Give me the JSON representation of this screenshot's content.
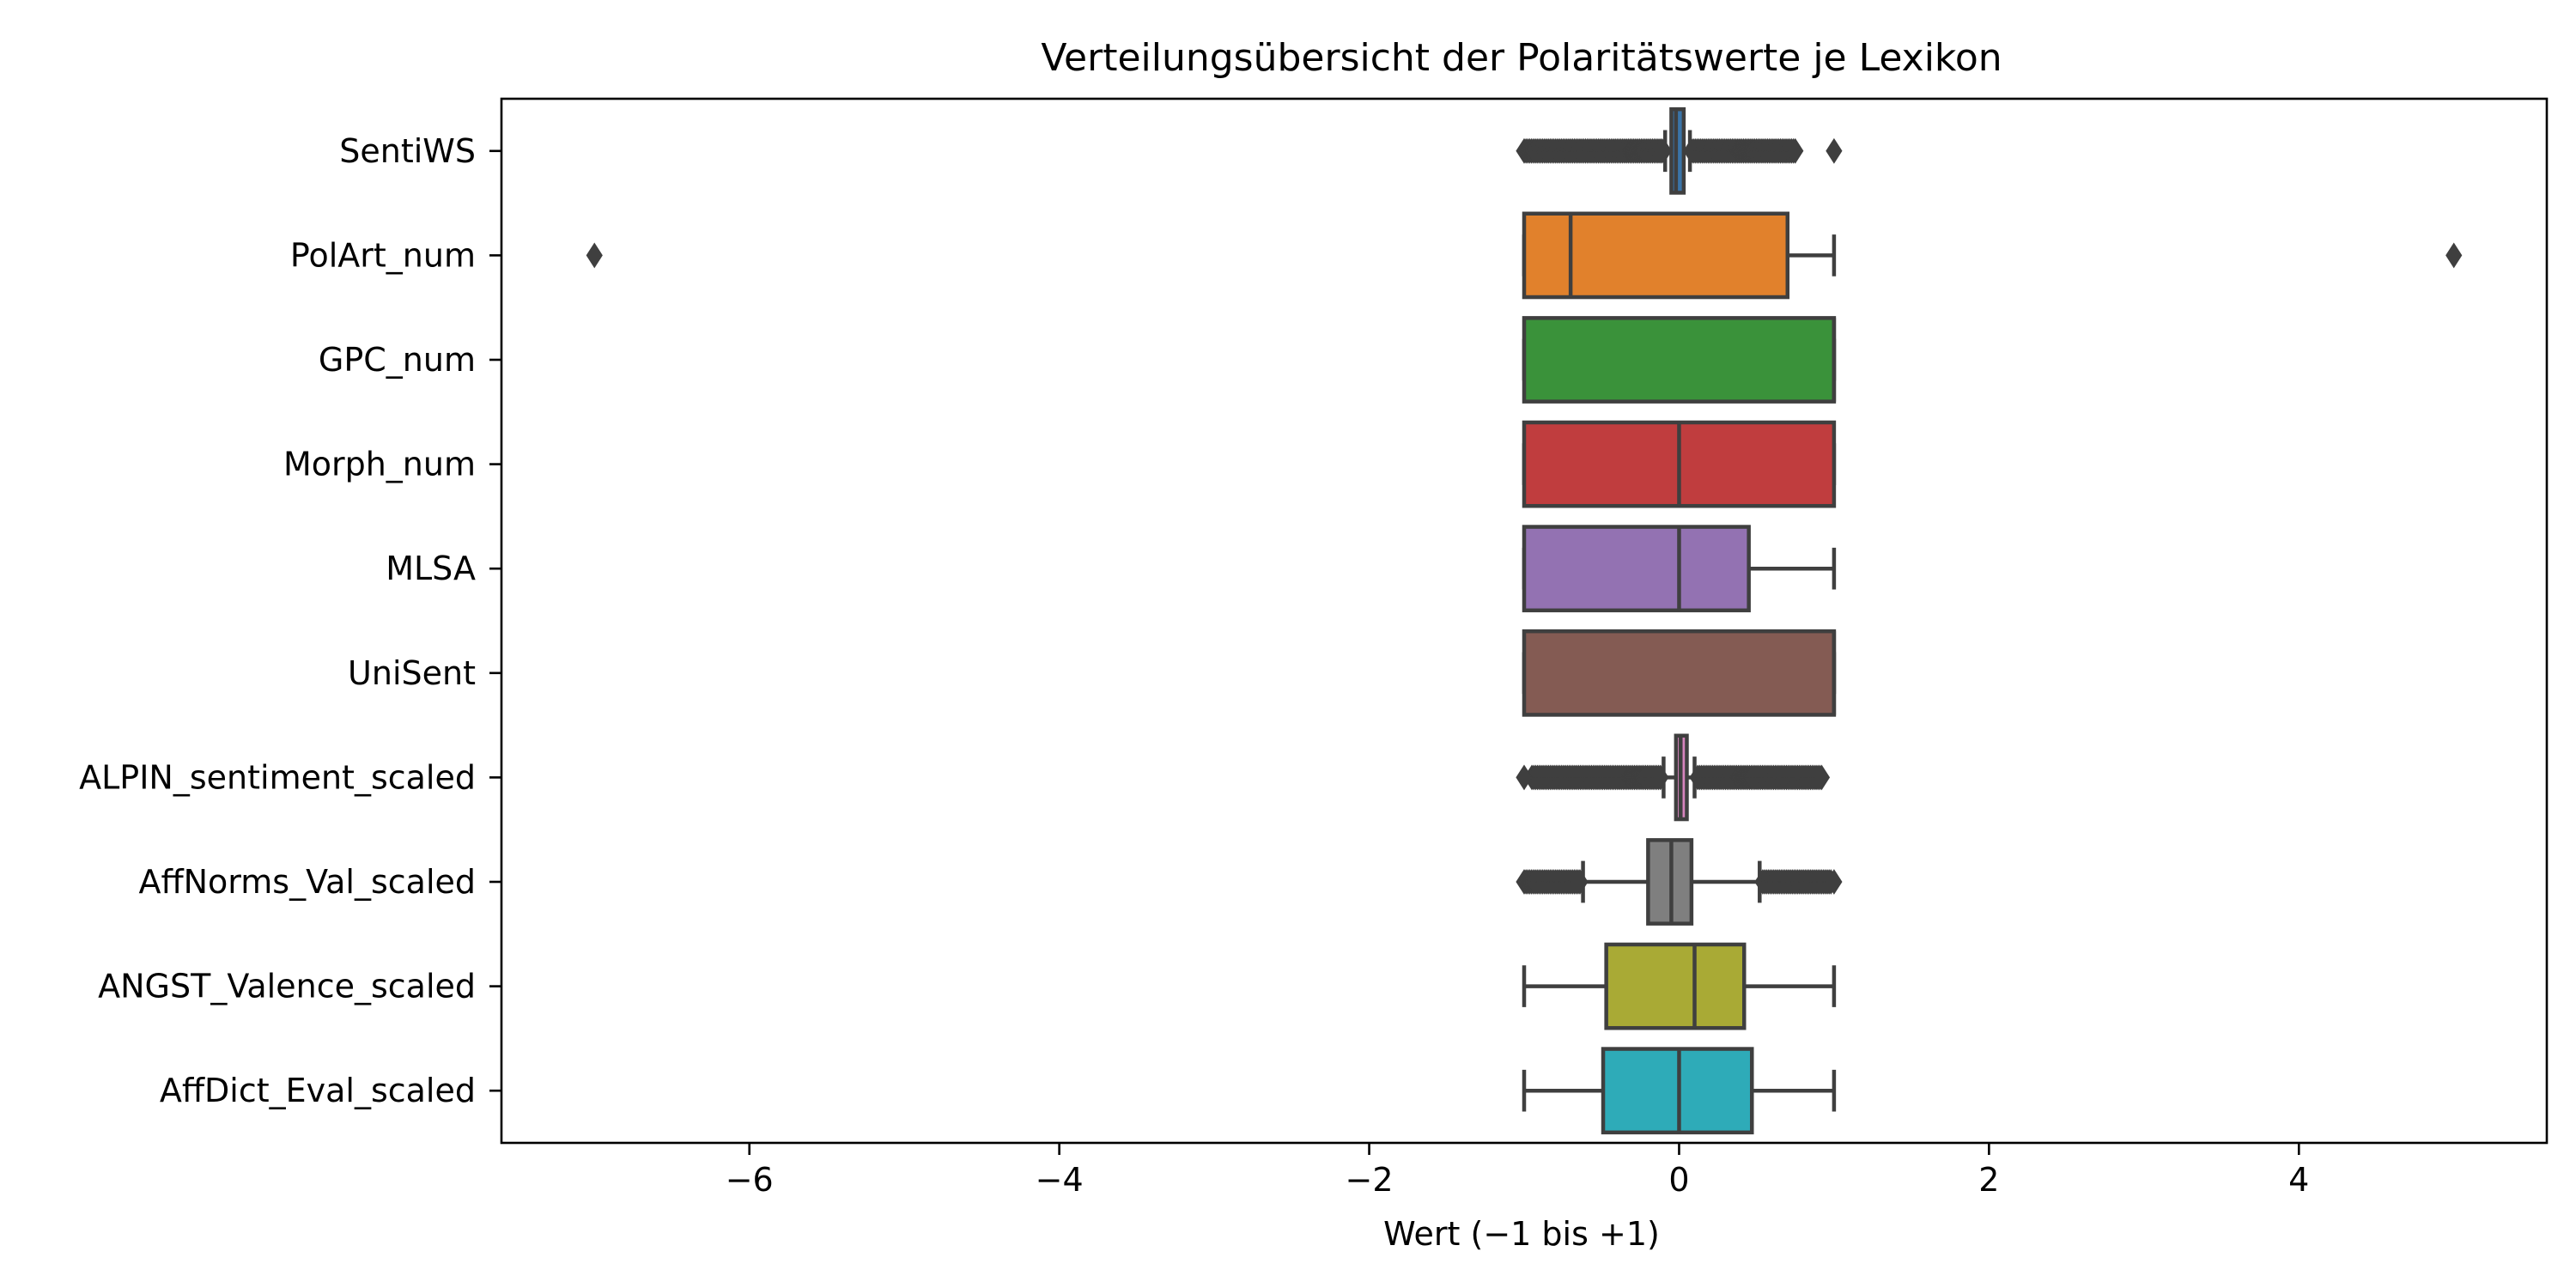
{
  "chart_data": {
    "type": "boxplot",
    "orientation": "horizontal",
    "title": "Verteilungsübersicht der Polaritätswerte je Lexikon",
    "xlabel": "Wert (−1 bis +1)",
    "ylabel": "",
    "xlim": [
      -7.6,
      5.6
    ],
    "xticks": [
      -6,
      -4,
      -2,
      0,
      2,
      4
    ],
    "xtick_labels": [
      "−6",
      "−4",
      "−2",
      "0",
      "2",
      "4"
    ],
    "grid": false,
    "legend": "none",
    "box_edge_color": "#3f3f3f",
    "series": [
      {
        "name": "SentiWS",
        "color": "#3a74a8",
        "q1": -0.05,
        "median": -0.02,
        "q3": 0.03,
        "whisker_low": -0.09,
        "whisker_high": 0.07,
        "outlier_bands": [
          [
            -1.0,
            -0.1
          ],
          [
            0.08,
            0.75
          ]
        ],
        "outliers": [
          1.0
        ]
      },
      {
        "name": "PolArt_num",
        "color": "#e1812c",
        "q1": -1.0,
        "median": -0.7,
        "q3": 0.7,
        "whisker_low": -1.0,
        "whisker_high": 1.0,
        "outlier_bands": [],
        "outliers": [
          -7.0,
          5.0
        ]
      },
      {
        "name": "GPC_num",
        "color": "#3a923a",
        "q1": -1.0,
        "median": 1.0,
        "q3": 1.0,
        "whisker_low": -1.0,
        "whisker_high": 1.0,
        "outlier_bands": [],
        "outliers": []
      },
      {
        "name": "Morph_num",
        "color": "#c03d3e",
        "q1": -1.0,
        "median": 0.0,
        "q3": 1.0,
        "whisker_low": -1.0,
        "whisker_high": 1.0,
        "outlier_bands": [],
        "outliers": []
      },
      {
        "name": "MLSA",
        "color": "#9372b2",
        "q1": -1.0,
        "median": 0.0,
        "q3": 0.45,
        "whisker_low": -1.0,
        "whisker_high": 1.0,
        "outlier_bands": [],
        "outliers": []
      },
      {
        "name": "UniSent",
        "color": "#845b53",
        "q1": -1.0,
        "median": 1.0,
        "q3": 1.0,
        "whisker_low": -1.0,
        "whisker_high": 1.0,
        "outlier_bands": [],
        "outliers": []
      },
      {
        "name": "ALPIN_sentiment_scaled",
        "color": "#d684bd",
        "q1": -0.02,
        "median": 0.01,
        "q3": 0.05,
        "whisker_low": -0.1,
        "whisker_high": 0.1,
        "outlier_bands": [
          [
            -0.95,
            -0.12
          ],
          [
            0.12,
            0.92
          ]
        ],
        "outliers": [
          -1.0
        ]
      },
      {
        "name": "AffNorms_Val_scaled",
        "color": "#7f7f7f",
        "q1": -0.2,
        "median": -0.05,
        "q3": 0.08,
        "whisker_low": -0.62,
        "whisker_high": 0.52,
        "outlier_bands": [
          [
            -1.0,
            -0.64
          ],
          [
            0.54,
            0.98
          ]
        ],
        "outliers": [
          1.0
        ]
      },
      {
        "name": "ANGST_Valence_scaled",
        "color": "#a9aa35",
        "q1": -0.47,
        "median": 0.1,
        "q3": 0.42,
        "whisker_low": -1.0,
        "whisker_high": 1.0,
        "outlier_bands": [],
        "outliers": []
      },
      {
        "name": "AffDict_Eval_scaled",
        "color": "#2eabb8",
        "q1": -0.49,
        "median": 0.0,
        "q3": 0.47,
        "whisker_low": -1.0,
        "whisker_high": 1.0,
        "outlier_bands": [],
        "outliers": []
      }
    ]
  }
}
